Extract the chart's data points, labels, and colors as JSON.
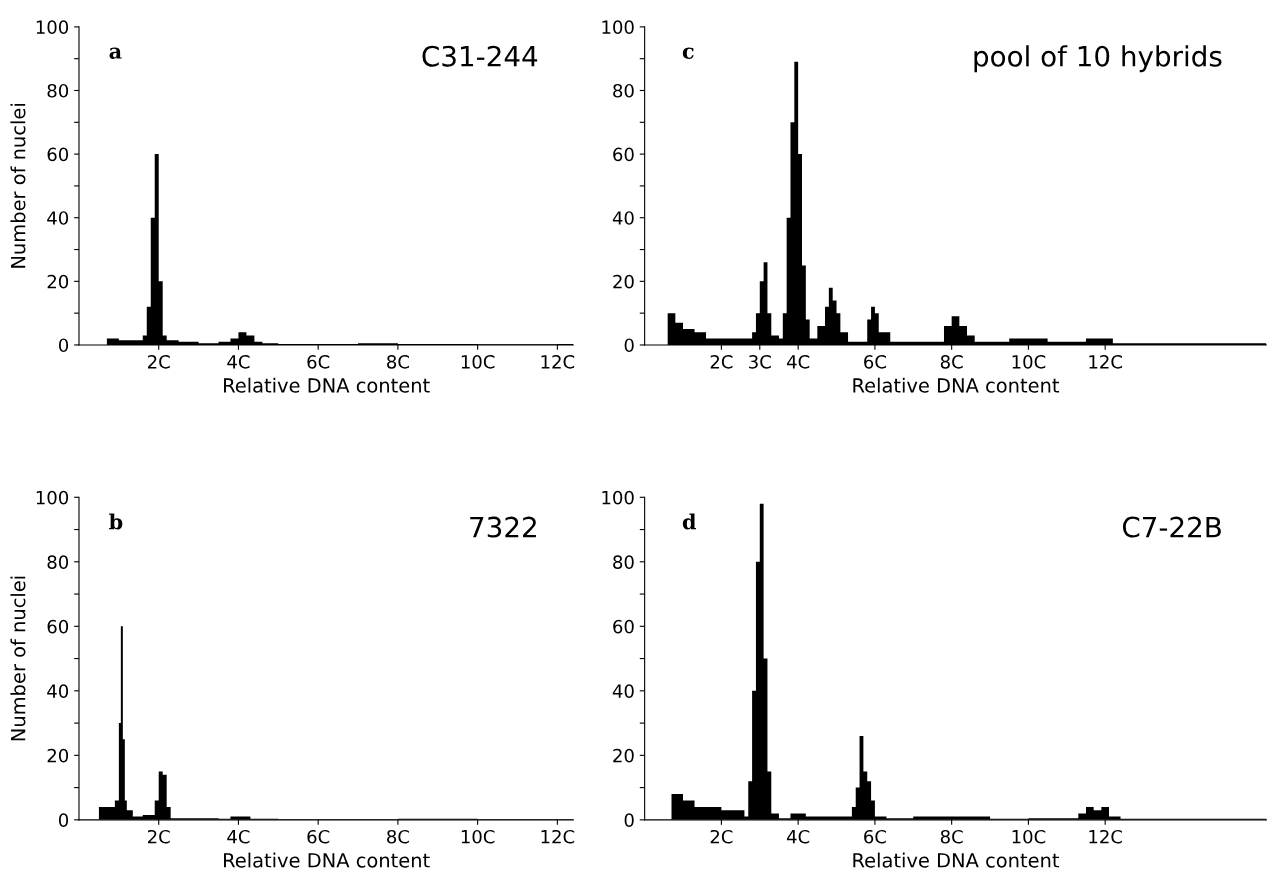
{
  "chart_data": [
    {
      "type": "histogram",
      "title": "C31-244",
      "xlabel": "Relative DNA content",
      "ylabel": "Number of nuclei",
      "annotations": [
        "a"
      ],
      "color": "#000000",
      "bins": [
        0.7,
        1.0,
        1.3,
        1.6,
        1.7,
        1.8,
        1.9,
        2.0,
        2.1,
        2.2,
        2.5,
        3.0,
        3.5,
        3.8,
        4.0,
        4.2,
        4.4,
        4.6,
        5,
        6,
        7,
        8,
        9,
        10,
        11,
        12,
        12.4
      ],
      "values": [
        2,
        1.5,
        1.5,
        3,
        12,
        40,
        60,
        20,
        3,
        1.5,
        1,
        0.5,
        1,
        2,
        4,
        3,
        1,
        0.5,
        0.3,
        0.3,
        0.5,
        0.3,
        0.3,
        0.2,
        0.2,
        0.3
      ],
      "xlim": [
        0,
        12.4
      ],
      "xticks": [
        {
          "value": 2,
          "label": "2C"
        },
        {
          "value": 4,
          "label": "4C"
        },
        {
          "value": 6,
          "label": "6C"
        },
        {
          "value": 8,
          "label": "8C"
        },
        {
          "value": 10,
          "label": "10C"
        },
        {
          "value": 12,
          "label": "12C"
        }
      ],
      "ylim": [
        0,
        100
      ],
      "yticks": [
        0,
        {
          "value": 10,
          "label": null
        },
        20,
        {
          "value": 30,
          "label": null
        },
        40,
        {
          "value": 50,
          "label": null
        },
        60,
        {
          "value": 70,
          "label": null
        },
        80,
        {
          "value": 90,
          "label": null
        },
        100
      ]
    },
    {
      "type": "histogram",
      "title": "pool of 10 hybrids",
      "xlabel": "Relative DNA content",
      "annotations": [
        "c"
      ],
      "color": "#000000",
      "bins": [
        0.6,
        0.8,
        1.0,
        1.3,
        1.6,
        2.0,
        2.4,
        2.8,
        2.9,
        3.0,
        3.1,
        3.2,
        3.3,
        3.5,
        3.6,
        3.7,
        3.8,
        3.9,
        4.0,
        4.1,
        4.2,
        4.3,
        4.5,
        4.7,
        4.8,
        4.9,
        5.0,
        5.1,
        5.3,
        5.8,
        5.9,
        6.0,
        6.1,
        6.4,
        7.0,
        7.8,
        8.0,
        8.2,
        8.4,
        8.6,
        9.5,
        10.5,
        11.5,
        12.2,
        16.2
      ],
      "values": [
        10,
        7,
        5,
        4,
        2,
        2,
        2,
        4,
        10,
        20,
        26,
        10,
        3,
        2,
        10,
        40,
        70,
        89,
        60,
        25,
        8,
        2,
        6,
        12,
        18,
        14,
        10,
        4,
        1,
        8,
        12,
        10,
        4,
        1,
        1,
        6,
        9,
        6,
        3,
        1,
        2,
        1,
        2,
        0.5
      ],
      "xlim": [
        0,
        16.2
      ],
      "xticks": [
        {
          "value": 2,
          "label": "2C"
        },
        {
          "value": 3,
          "label": "3C"
        },
        {
          "value": 4,
          "label": "4C"
        },
        {
          "value": 6,
          "label": "6C"
        },
        {
          "value": 8,
          "label": "8C"
        },
        {
          "value": 10,
          "label": "10C"
        },
        {
          "value": 12,
          "label": "12C"
        }
      ],
      "ylim": [
        0,
        100
      ],
      "yticks": [
        0,
        {
          "value": 10,
          "label": null
        },
        20,
        {
          "value": 30,
          "label": null
        },
        40,
        {
          "value": 50,
          "label": null
        },
        60,
        {
          "value": 70,
          "label": null
        },
        80,
        {
          "value": 90,
          "label": null
        },
        100
      ]
    },
    {
      "type": "histogram",
      "title": "7322",
      "xlabel": "Relative DNA content",
      "ylabel": "Number of nuclei",
      "annotations": [
        "b"
      ],
      "color": "#000000",
      "bins": [
        0.5,
        0.7,
        0.9,
        1.0,
        1.05,
        1.1,
        1.15,
        1.2,
        1.35,
        1.6,
        1.9,
        2.0,
        2.1,
        2.2,
        2.3,
        2.6,
        3.5,
        3.8,
        4.3,
        5,
        6,
        8,
        10,
        12,
        12.4
      ],
      "values": [
        4,
        4,
        6,
        30,
        60,
        25,
        6,
        3,
        1,
        1.5,
        6,
        15,
        14,
        4,
        0.5,
        0.5,
        0.3,
        1,
        0.3,
        0.2,
        0.2,
        0.3,
        0.2,
        0.2
      ],
      "xlim": [
        0,
        12.4
      ],
      "xticks": [
        {
          "value": 2,
          "label": "2C"
        },
        {
          "value": 4,
          "label": "4C"
        },
        {
          "value": 6,
          "label": "6C"
        },
        {
          "value": 8,
          "label": "8C"
        },
        {
          "value": 10,
          "label": "10C"
        },
        {
          "value": 12,
          "label": "12C"
        }
      ],
      "ylim": [
        0,
        100
      ],
      "yticks": [
        0,
        {
          "value": 10,
          "label": null
        },
        20,
        {
          "value": 30,
          "label": null
        },
        40,
        {
          "value": 50,
          "label": null
        },
        60,
        {
          "value": 70,
          "label": null
        },
        80,
        {
          "value": 90,
          "label": null
        },
        100
      ]
    },
    {
      "type": "histogram",
      "title": "C7-22B",
      "xlabel": "Relative DNA content",
      "annotations": [
        "d"
      ],
      "color": "#000000",
      "bins": [
        0.7,
        1.0,
        1.3,
        1.7,
        2.0,
        2.3,
        2.6,
        2.7,
        2.8,
        2.9,
        3.0,
        3.1,
        3.2,
        3.3,
        3.5,
        3.8,
        4.2,
        5.0,
        5.4,
        5.5,
        5.6,
        5.7,
        5.8,
        5.9,
        6.0,
        6.3,
        7.0,
        8.0,
        9.0,
        10.0,
        11.3,
        11.5,
        11.7,
        11.9,
        12.1,
        12.4,
        16.2
      ],
      "values": [
        8,
        6,
        4,
        4,
        3,
        3,
        1,
        12,
        40,
        80,
        98,
        50,
        15,
        2,
        0.5,
        2,
        1,
        1,
        4,
        10,
        26,
        15,
        12,
        6,
        1,
        0.5,
        1,
        1,
        0.3,
        0.5,
        2,
        4,
        3,
        4,
        1,
        0.3
      ],
      "xlim": [
        0,
        16.2
      ],
      "xticks": [
        {
          "value": 2,
          "label": "2C"
        },
        {
          "value": 4,
          "label": "4C"
        },
        {
          "value": 6,
          "label": "6C"
        },
        {
          "value": 8,
          "label": "8C"
        },
        {
          "value": 10,
          "label": "10C"
        },
        {
          "value": 12,
          "label": "12C"
        }
      ],
      "ylim": [
        0,
        100
      ],
      "yticks": [
        0,
        {
          "value": 10,
          "label": null
        },
        20,
        {
          "value": 30,
          "label": null
        },
        40,
        {
          "value": 50,
          "label": null
        },
        60,
        {
          "value": 70,
          "label": null
        },
        80,
        {
          "value": 90,
          "label": null
        },
        100
      ]
    }
  ]
}
